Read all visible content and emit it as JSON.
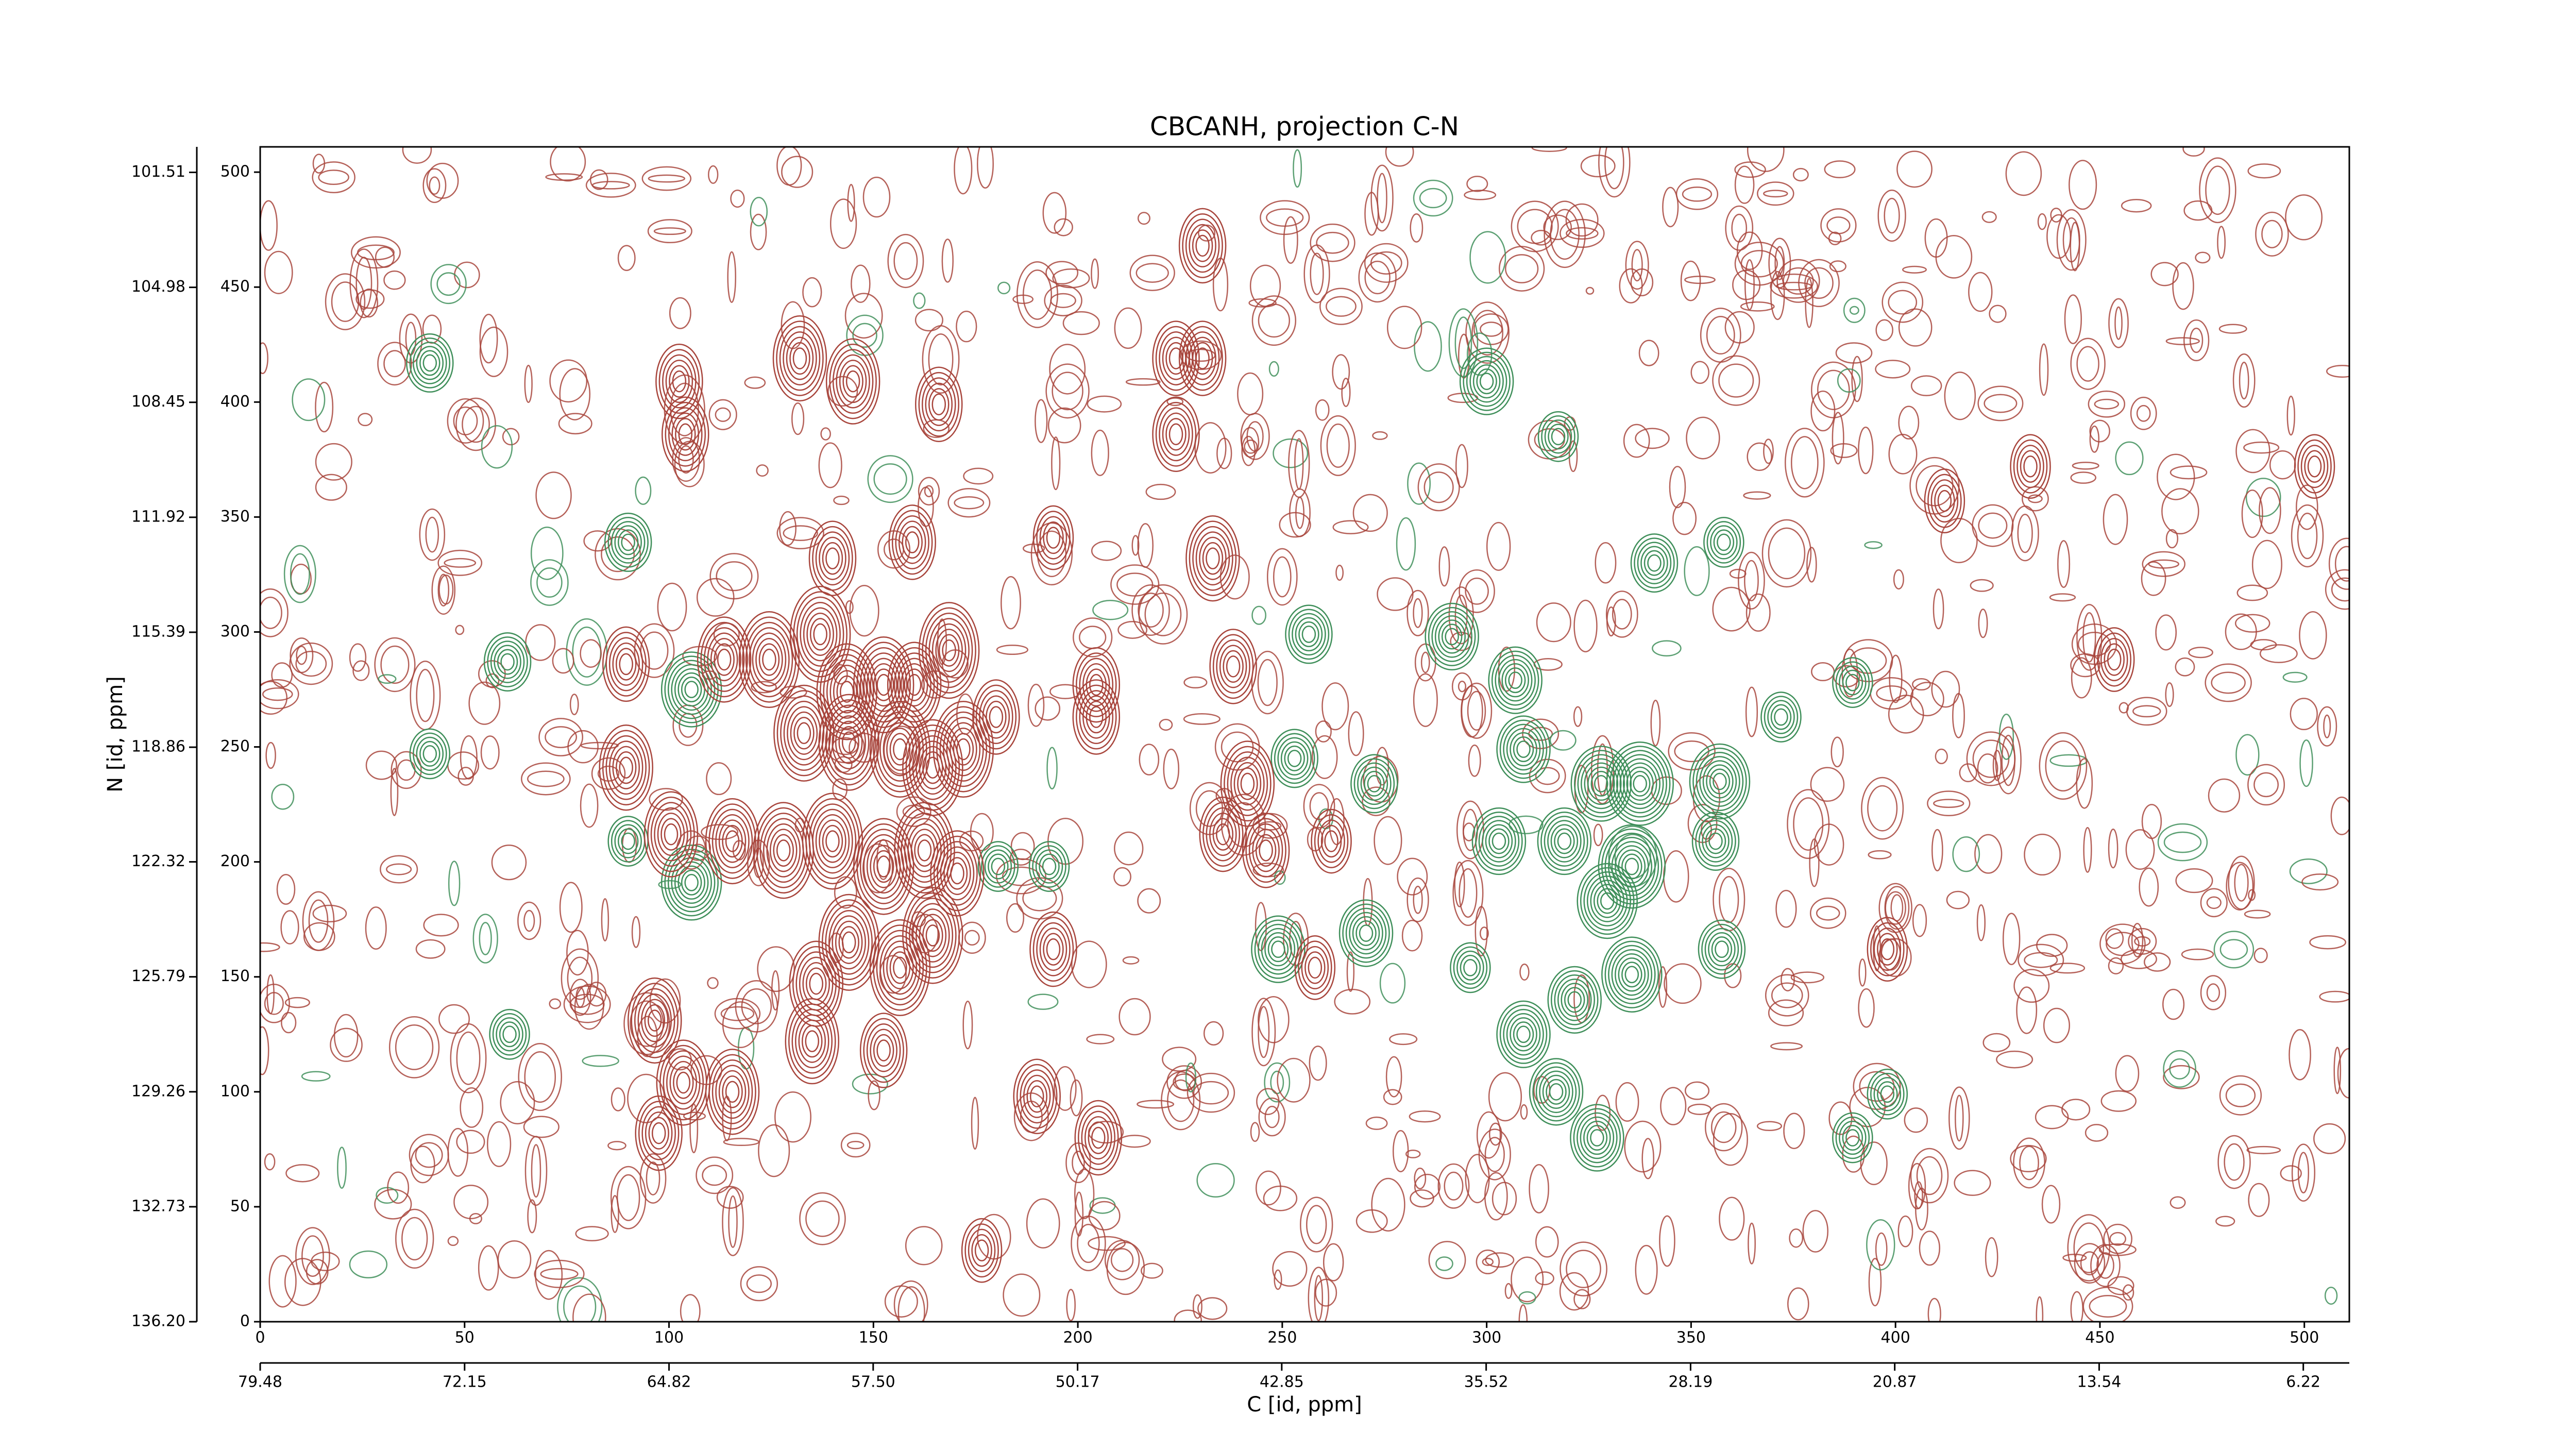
{
  "chart_data": {
    "type": "contour",
    "title": "CBCANH, projection C-N",
    "x_label": "C [id, ppm]",
    "y_label": "N [id, ppm]",
    "xlim": [
      0,
      511
    ],
    "ylim": [
      0,
      511
    ],
    "xticks": [
      0,
      50,
      100,
      150,
      200,
      250,
      300,
      350,
      400,
      450,
      500
    ],
    "yticks": [
      0,
      50,
      100,
      150,
      200,
      250,
      300,
      350,
      400,
      450,
      500
    ],
    "x2lim": [
      79.48,
      4.57
    ],
    "x2ticks": [
      79.48,
      72.15,
      64.82,
      {
        "value": 57.5,
        "label": "57.50"
      },
      50.17,
      42.85,
      35.52,
      28.19,
      20.87,
      13.54,
      6.22
    ],
    "y2lim": [
      136.2,
      100.74
    ],
    "y2ticks": [
      {
        "value": 136.2,
        "label": "136.20"
      },
      132.73,
      129.26,
      125.79,
      122.32,
      118.86,
      115.39,
      111.92,
      108.45,
      104.98,
      101.51
    ],
    "positive_color": "#a8453c",
    "negative_color": "#3f8f5a",
    "peaks": {
      "x": [
        41.5,
        90,
        60.5,
        41.5,
        105.5,
        105.5,
        90,
        61,
        256.5,
        253,
        272.5,
        249,
        270.5,
        300,
        291.5,
        307,
        309,
        303,
        319,
        328,
        335.5,
        337.5,
        335.5,
        329.5,
        321.5,
        309,
        317,
        327,
        341,
        357,
        356,
        357.5,
        296,
        389.5,
        372,
        358,
        398,
        389.5,
        317.5,
        180.5,
        193,
        132,
        145,
        102.5,
        104,
        166,
        230.5,
        224,
        230.5,
        224,
        233,
        140,
        159.5,
        194,
        238,
        89.5,
        113.5,
        124.5,
        137,
        133,
        143.5,
        152.5,
        160,
        168.5,
        172,
        164.5,
        156.5,
        180,
        144,
        89.5,
        204.5,
        204.5,
        100.5,
        115.5,
        128,
        140,
        152.5,
        162.5,
        170.5,
        144,
        156.5,
        136,
        164.5,
        96.5,
        103.5,
        115.5,
        97.5,
        152.5,
        135,
        194,
        190,
        205,
        176.5,
        241.5,
        235.5,
        246,
        262,
        258,
        433,
        412,
        453.5,
        502.5,
        398
      ],
      "y": [
        417,
        339,
        287,
        247,
        275,
        191,
        209,
        125,
        299,
        245,
        234,
        162,
        169,
        409,
        298,
        279,
        249,
        209,
        209,
        234,
        198,
        234,
        151,
        183,
        140,
        125,
        100,
        80,
        330,
        235,
        209,
        162,
        154,
        278,
        263,
        339,
        99,
        80,
        385,
        198,
        198,
        419,
        409,
        409,
        386,
        399,
        468,
        419,
        419,
        386,
        332,
        332,
        339,
        341,
        285,
        286,
        288,
        288,
        299,
        256,
        274,
        277,
        277,
        292,
        249,
        241,
        249,
        263,
        252,
        241,
        277,
        263,
        212,
        209,
        205,
        209,
        198,
        205,
        195,
        165,
        154,
        147,
        168,
        131,
        104,
        100,
        82,
        118,
        122,
        162,
        98,
        80,
        31,
        234,
        212,
        205,
        209,
        154,
        372,
        357,
        288,
        372,
        162
      ],
      "levels": [
        -6,
        -6,
        -6,
        -5,
        -8,
        -8,
        -5,
        -5,
        -6,
        -6,
        -6,
        -7,
        -7,
        -7,
        -7,
        -7,
        -7,
        -7,
        -7,
        -8,
        -9,
        -9,
        -8,
        -8,
        -7,
        -7,
        -7,
        -7,
        -6,
        -8,
        -6,
        -6,
        -5,
        -5,
        -5,
        -5,
        -5,
        -5,
        -5,
        -5,
        -5,
        7,
        7,
        6,
        6,
        6,
        6,
        6,
        6,
        6,
        7,
        6,
        6,
        5,
        6,
        6,
        7,
        8,
        8,
        8,
        8,
        8,
        7,
        8,
        8,
        8,
        8,
        6,
        8,
        7,
        6,
        6,
        7,
        7,
        8,
        8,
        8,
        8,
        7,
        8,
        8,
        7,
        8,
        7,
        7,
        7,
        6,
        6,
        7,
        6,
        6,
        6,
        5,
        7,
        6,
        6,
        5,
        5,
        5,
        5,
        5,
        5,
        5
      ]
    }
  }
}
